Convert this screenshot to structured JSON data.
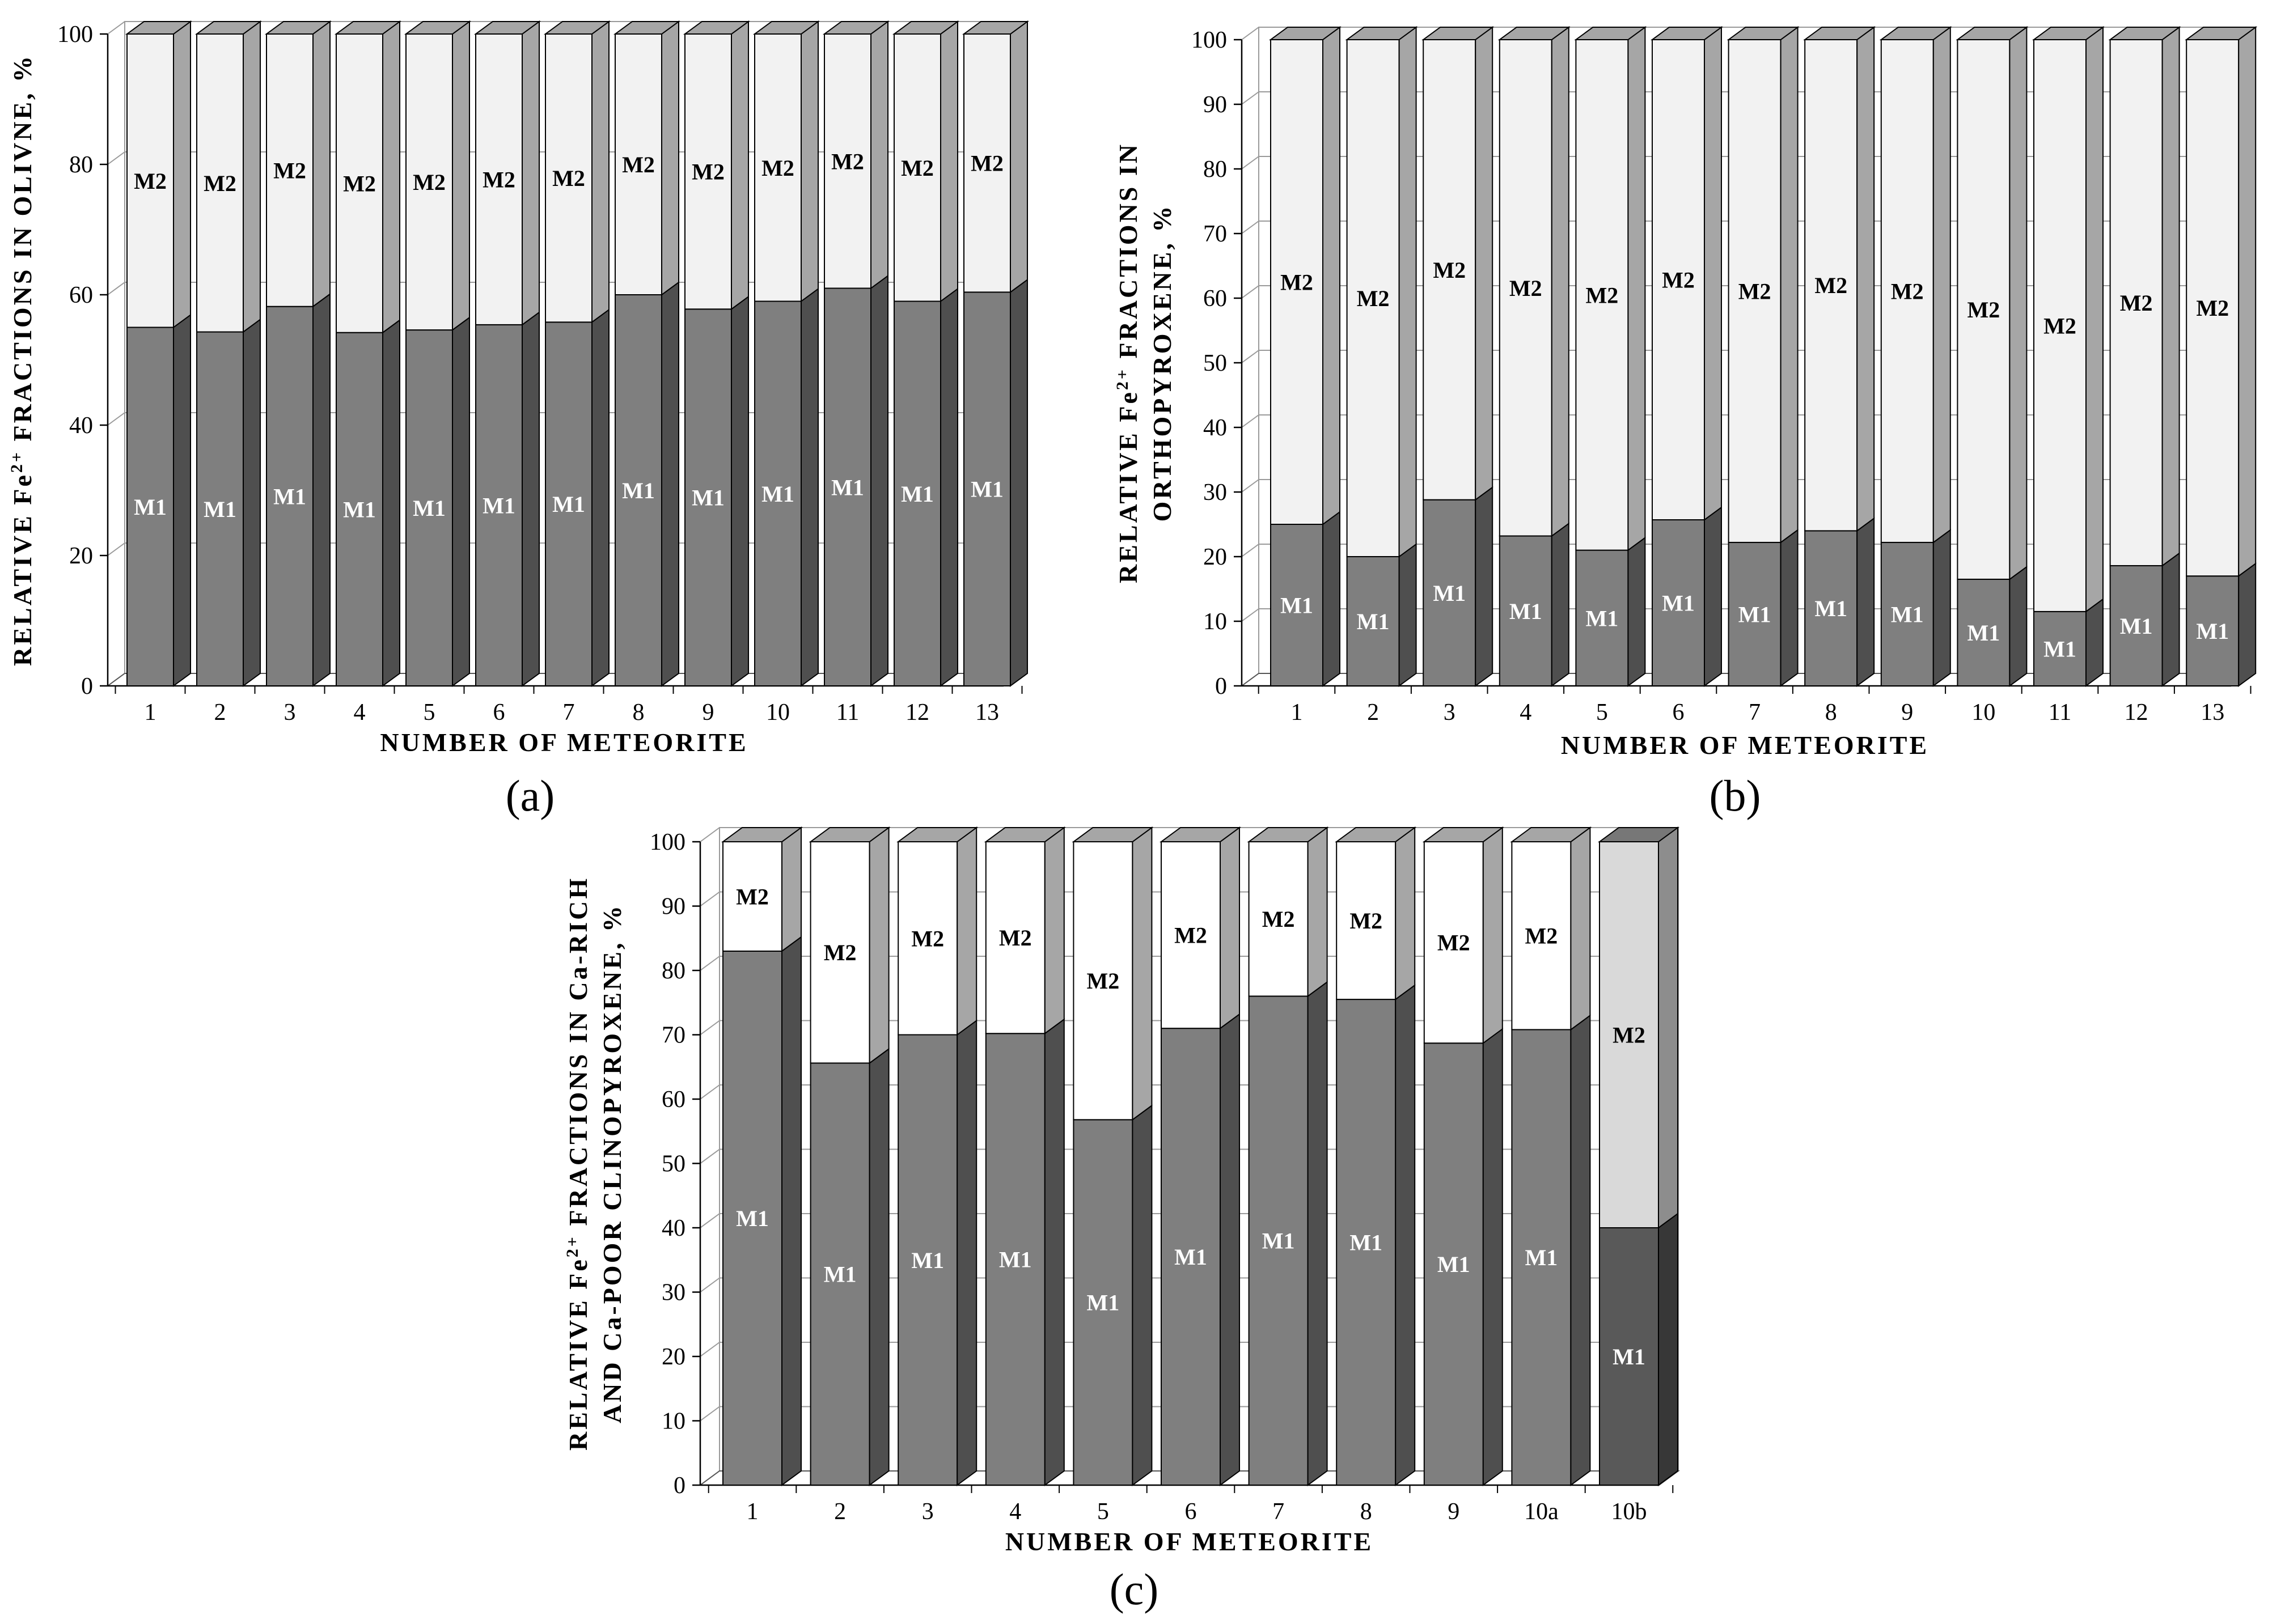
{
  "chart_data": [
    {
      "id": "a",
      "type": "bar",
      "stacked": true,
      "style": "3d",
      "panel_label": "(a)",
      "categories": [
        "1",
        "2",
        "3",
        "4",
        "5",
        "6",
        "7",
        "8",
        "9",
        "10",
        "11",
        "12",
        "13"
      ],
      "series": [
        {
          "name": "M1",
          "values": [
            55,
            54.3,
            58.2,
            54.2,
            54.6,
            55.4,
            55.8,
            60,
            57.8,
            59,
            61,
            59,
            60.4
          ]
        },
        {
          "name": "M2",
          "values": [
            45,
            45.7,
            41.8,
            45.8,
            45.4,
            44.6,
            44.2,
            40,
            42.2,
            41,
            39,
            41,
            39.6
          ]
        }
      ],
      "ylim": [
        0,
        100
      ],
      "yticks": [
        0,
        20,
        40,
        60,
        80,
        100
      ],
      "xlabel": "NUMBER OF METEORITE",
      "ylabel_lines": [
        [
          "RELATIVE Fe",
          "2+",
          " FRACTIONS IN OLIVNE, %"
        ]
      ],
      "colors": {
        "M1": "#7f7f7f",
        "M2": "#f2f2f2"
      }
    },
    {
      "id": "b",
      "type": "bar",
      "stacked": true,
      "style": "3d",
      "panel_label": "(b)",
      "categories": [
        "1",
        "2",
        "3",
        "4",
        "5",
        "6",
        "7",
        "8",
        "9",
        "10",
        "11",
        "12",
        "13"
      ],
      "series": [
        {
          "name": "M1",
          "values": [
            25,
            20,
            28.8,
            23.2,
            21,
            25.7,
            22.2,
            24,
            22.2,
            16.5,
            11.5,
            18.6,
            17
          ]
        },
        {
          "name": "M2",
          "values": [
            75,
            80,
            71.2,
            76.8,
            79,
            74.3,
            77.8,
            76,
            77.8,
            83.5,
            88.5,
            81.4,
            83
          ]
        }
      ],
      "ylim": [
        0,
        100
      ],
      "yticks": [
        0,
        10,
        20,
        30,
        40,
        50,
        60,
        70,
        80,
        90,
        100
      ],
      "xlabel": "NUMBER OF METEORITE",
      "ylabel_lines": [
        [
          "RELATIVE Fe",
          "2+",
          " FRACTIONS IN"
        ],
        [
          "ORTHOPYROXENE, %"
        ]
      ],
      "colors": {
        "M1": "#7f7f7f",
        "M2": "#f2f2f2"
      }
    },
    {
      "id": "c",
      "type": "bar",
      "stacked": true,
      "style": "3d",
      "panel_label": "(c)",
      "categories": [
        "1",
        "2",
        "3",
        "4",
        "5",
        "6",
        "7",
        "8",
        "9",
        "10a",
        "10b"
      ],
      "series": [
        {
          "name": "M1",
          "values": [
            83,
            65.6,
            70,
            70.2,
            56.8,
            71,
            76,
            75.5,
            68.7,
            70.8,
            40
          ]
        },
        {
          "name": "M2",
          "values": [
            17,
            34.4,
            30,
            29.8,
            43.2,
            29,
            24,
            24.5,
            31.3,
            29.2,
            60
          ]
        }
      ],
      "ylim": [
        0,
        100
      ],
      "yticks": [
        0,
        10,
        20,
        30,
        40,
        50,
        60,
        70,
        80,
        90,
        100
      ],
      "xlabel": "NUMBER OF METEORITE",
      "ylabel_lines": [
        [
          "RELATIVE Fe",
          "2+",
          " FRACTIONS IN Ca-RICH"
        ],
        [
          "AND Ca-POOR CLINOPYROXENE, %"
        ]
      ],
      "colors": {
        "M1": "#7f7f7f",
        "M2": "#ffffff",
        "M1_highlight": "#595959",
        "M2_highlight": "#d9d9d9"
      },
      "highlight_category": "10b"
    }
  ]
}
